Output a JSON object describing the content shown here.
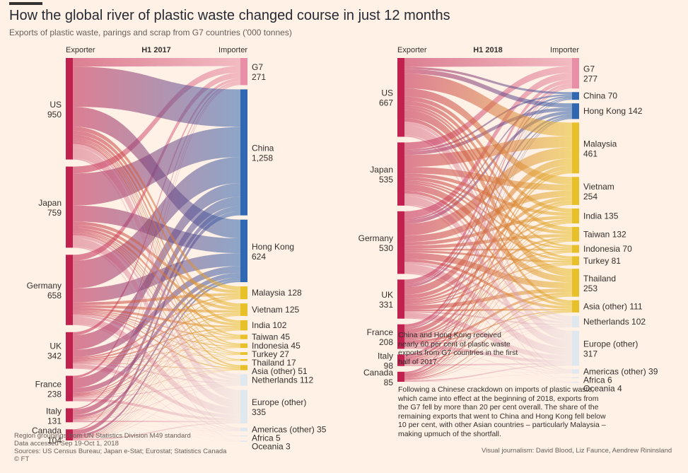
{
  "title": "How the global river of plastic waste changed course in just 12 months",
  "subtitle": "Exports of plastic waste, parings and scrap from G7 countries ('000 tonnes)",
  "colors": {
    "exporter": "#c0214f",
    "g7": "#e88ea6",
    "china": "#2f67b1",
    "asia": "#e8c02a",
    "other": "#dfe7ef"
  },
  "chart_data": [
    {
      "type": "sankey",
      "period": "H1 2017",
      "left_header": "Exporter",
      "right_header": "Importer",
      "exporters": [
        {
          "name": "US",
          "value": "950"
        },
        {
          "name": "Japan",
          "value": "759"
        },
        {
          "name": "Germany",
          "value": "658"
        },
        {
          "name": "UK",
          "value": "342"
        },
        {
          "name": "France",
          "value": "238"
        },
        {
          "name": "Italy",
          "value": "131"
        },
        {
          "name": "Canada",
          "value": "104"
        }
      ],
      "importers": [
        {
          "name": "G7",
          "value": "271",
          "group": "g7"
        },
        {
          "name": "China",
          "value": "1,258",
          "group": "china"
        },
        {
          "name": "Hong Kong",
          "value": "624",
          "group": "china"
        },
        {
          "name": "Malaysia",
          "value": "128",
          "group": "asia"
        },
        {
          "name": "Vietnam",
          "value": "125",
          "group": "asia"
        },
        {
          "name": "India",
          "value": "102",
          "group": "asia"
        },
        {
          "name": "Taiwan",
          "value": "45",
          "group": "asia"
        },
        {
          "name": "Indonesia",
          "value": "45",
          "group": "asia"
        },
        {
          "name": "Turkey",
          "value": "27",
          "group": "asia"
        },
        {
          "name": "Thailand",
          "value": "17",
          "group": "asia"
        },
        {
          "name": "Asia (other)",
          "value": "51",
          "group": "asia"
        },
        {
          "name": "Netherlands",
          "value": "112",
          "group": "other"
        },
        {
          "name": "Europe (other)",
          "value": "335",
          "group": "other"
        },
        {
          "name": "Americas (other)",
          "value": "35",
          "group": "other"
        },
        {
          "name": "Africa",
          "value": "5",
          "group": "other"
        },
        {
          "name": "Oceania",
          "value": "3",
          "group": "other"
        }
      ]
    },
    {
      "type": "sankey",
      "period": "H1 2018",
      "left_header": "Exporter",
      "right_header": "Importer",
      "exporters": [
        {
          "name": "US",
          "value": "667"
        },
        {
          "name": "Japan",
          "value": "535"
        },
        {
          "name": "Germany",
          "value": "530"
        },
        {
          "name": "UK",
          "value": "331"
        },
        {
          "name": "France",
          "value": "208"
        },
        {
          "name": "Italy",
          "value": "98"
        },
        {
          "name": "Canada",
          "value": "85"
        }
      ],
      "importers": [
        {
          "name": "G7",
          "value": "277",
          "group": "g7"
        },
        {
          "name": "China",
          "value": "70",
          "group": "china"
        },
        {
          "name": "Hong Kong",
          "value": "142",
          "group": "china"
        },
        {
          "name": "Malaysia",
          "value": "461",
          "group": "asia"
        },
        {
          "name": "Vietnam",
          "value": "254",
          "group": "asia"
        },
        {
          "name": "India",
          "value": "135",
          "group": "asia"
        },
        {
          "name": "Taiwan",
          "value": "132",
          "group": "asia"
        },
        {
          "name": "Indonesia",
          "value": "70",
          "group": "asia"
        },
        {
          "name": "Turkey",
          "value": "81",
          "group": "asia"
        },
        {
          "name": "Thailand",
          "value": "253",
          "group": "asia"
        },
        {
          "name": "Asia (other)",
          "value": "111",
          "group": "asia"
        },
        {
          "name": "Netherlands",
          "value": "102",
          "group": "other"
        },
        {
          "name": "Europe (other)",
          "value": "317",
          "group": "other"
        },
        {
          "name": "Americas (other)",
          "value": "39",
          "group": "other"
        },
        {
          "name": "Africa",
          "value": "6",
          "group": "other"
        },
        {
          "name": "Oceania",
          "value": "4",
          "group": "other"
        }
      ]
    }
  ],
  "notes": {
    "china_note": "China and Hong Kong received nearly 60 per cent of plastic waste exports from G7 countries in the first half of 2017.",
    "crackdown_note": "Following a Chinese crackdown on imports of plastic waste, which came into effect at the beginning of 2018, exports from the G7 fell by more than 20 per cent overall. The share of the remaining exports that went to China and Hong Kong fell below 10 per cent, with other Asian countries – particularly Malaysia – making upmuch of the shortfall."
  },
  "footer": {
    "line1": "Region groupings from UN Statistics Division M49 standard",
    "line2": "Data accessed Sep 19-Oct 1, 2018",
    "line3": "Sources: US Census Bureau; Japan e-Stat; Eurostat; Statistics Canada",
    "line4": "© FT",
    "credit": "Visual journalism: David Blood, Liz Faunce, Aendrew Rininsland"
  }
}
